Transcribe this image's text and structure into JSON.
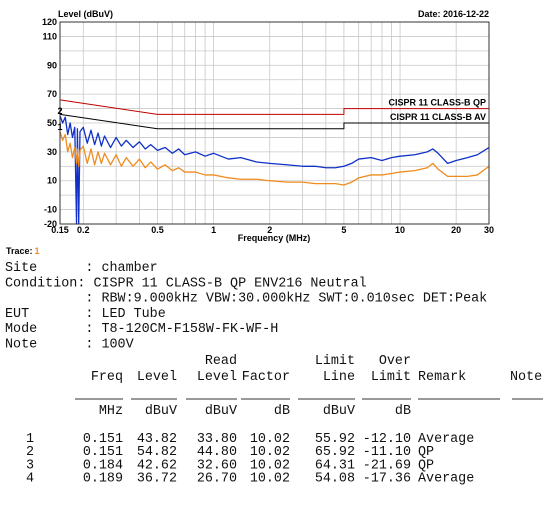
{
  "chart_data": {
    "type": "line",
    "ylabel": "Level (dBuV)",
    "xlabel": "Frequency (MHz)",
    "date": "Date: 2016-12-22",
    "xscale": "log",
    "xlim": [
      0.15,
      30
    ],
    "xticks": [
      0.15,
      0.2,
      0.5,
      1,
      2,
      5,
      10,
      20,
      30
    ],
    "xminor": [
      0.3,
      0.4,
      0.6,
      0.7,
      0.8,
      0.9,
      3,
      4,
      6,
      7,
      8,
      9
    ],
    "ylim": [
      -20,
      120
    ],
    "yticks": [
      -20,
      -10,
      10,
      30,
      50,
      70,
      90,
      110,
      120
    ],
    "yminor": [
      0,
      20,
      40,
      60,
      80,
      100
    ],
    "grid": true,
    "series": [
      {
        "name": "CISPR 11 CLASS-B QP",
        "color": "#c00000",
        "x": [
          0.15,
          0.5,
          5,
          5,
          30
        ],
        "values": [
          66,
          56,
          56,
          60,
          60
        ]
      },
      {
        "name": "CISPR 11 CLASS-B AV",
        "color": "#000000",
        "x": [
          0.15,
          0.5,
          5,
          5,
          30
        ],
        "values": [
          56,
          46,
          46,
          50,
          50
        ]
      },
      {
        "color": "#1030c8",
        "x": [
          0.15,
          0.155,
          0.16,
          0.165,
          0.17,
          0.175,
          0.18,
          0.184,
          0.186,
          0.189,
          0.192,
          0.2,
          0.21,
          0.22,
          0.23,
          0.24,
          0.25,
          0.26,
          0.28,
          0.3,
          0.32,
          0.34,
          0.37,
          0.4,
          0.43,
          0.46,
          0.5,
          0.55,
          0.6,
          0.65,
          0.7,
          0.8,
          0.9,
          1,
          1.2,
          1.4,
          1.7,
          2,
          2.5,
          3,
          3.5,
          4,
          4.5,
          5,
          5.5,
          6,
          7,
          8,
          9,
          10,
          12,
          14,
          15,
          16,
          18,
          20,
          23,
          26,
          30
        ],
        "values": [
          55,
          50,
          54,
          42,
          50,
          40,
          47,
          -20,
          46,
          -20,
          44,
          47,
          36,
          45,
          35,
          43,
          34,
          41,
          33,
          40,
          34,
          38,
          33,
          37,
          32,
          35,
          31,
          33,
          29,
          32,
          28,
          30,
          27,
          29,
          25,
          26,
          23,
          22,
          21,
          20,
          20,
          19,
          19,
          20,
          22,
          25,
          26,
          24,
          26,
          27,
          28,
          30,
          32,
          29,
          22,
          24,
          26,
          28,
          33
        ]
      },
      {
        "color": "#f08c1e",
        "x": [
          0.15,
          0.155,
          0.16,
          0.165,
          0.17,
          0.175,
          0.18,
          0.184,
          0.186,
          0.189,
          0.192,
          0.2,
          0.21,
          0.22,
          0.23,
          0.24,
          0.25,
          0.26,
          0.28,
          0.3,
          0.32,
          0.34,
          0.37,
          0.4,
          0.43,
          0.46,
          0.5,
          0.55,
          0.6,
          0.65,
          0.7,
          0.8,
          0.9,
          1,
          1.2,
          1.4,
          1.7,
          2,
          2.5,
          3,
          3.5,
          4,
          4.5,
          5,
          5.5,
          6,
          7,
          8,
          9,
          10,
          12,
          14,
          15,
          16,
          18,
          20,
          23,
          26,
          30
        ],
        "values": [
          44,
          38,
          42,
          30,
          36,
          26,
          33,
          22,
          32,
          20,
          31,
          34,
          22,
          32,
          21,
          30,
          22,
          29,
          21,
          28,
          20,
          26,
          20,
          25,
          19,
          23,
          18,
          21,
          17,
          19,
          16,
          16,
          14,
          14,
          12,
          11,
          11,
          10,
          9,
          9,
          8,
          8,
          8,
          7,
          9,
          12,
          14,
          14,
          15,
          16,
          17,
          19,
          22,
          18,
          13,
          13,
          13,
          14,
          20
        ]
      }
    ],
    "markers": [
      {
        "label": "2",
        "x": 0.151,
        "y": 54.82
      },
      {
        "label": "1",
        "x": 0.151,
        "y": 43.82
      }
    ]
  },
  "report": {
    "trace_label": "Trace:",
    "trace": "1",
    "info": [
      {
        "label": "Site",
        "value": ": chamber"
      },
      {
        "label": "Condition:",
        "value": "CISPR 11 CLASS-B QP ENV216 Neutral"
      },
      {
        "value": ": RBW:9.000kHz VBW:30.000kHz SWT:0.010sec DET:Peak"
      },
      {
        "label": "EUT",
        "value": ": LED Tube"
      },
      {
        "label": "Mode",
        "value": ": T8-120CM-F158W-FK-WF-H"
      },
      {
        "label": "Note",
        "value": ": 100V"
      }
    ]
  },
  "table": {
    "columns": [
      {
        "name": "Freq",
        "unit": "MHz"
      },
      {
        "name": "Level",
        "unit": "dBuV"
      },
      {
        "top": "Read",
        "name": "Level",
        "unit": "dBuV"
      },
      {
        "name": "Factor",
        "unit": "dB"
      },
      {
        "top": "Limit",
        "name": "Line",
        "unit": "dBuV"
      },
      {
        "top": "Over",
        "name": "Limit",
        "unit": "dB"
      },
      {
        "name": "Remark"
      },
      {
        "name": "Note"
      }
    ],
    "rows": [
      [
        "1",
        "0.151",
        "43.82",
        "33.80",
        "10.02",
        "55.92",
        "-12.10",
        "Average"
      ],
      [
        "2",
        "0.151",
        "54.82",
        "44.80",
        "10.02",
        "65.92",
        "-11.10",
        "QP"
      ],
      [
        "3",
        "0.184",
        "42.62",
        "32.60",
        "10.02",
        "64.31",
        "-21.69",
        "QP"
      ],
      [
        "4",
        "0.189",
        "36.72",
        "26.70",
        "10.02",
        "54.08",
        "-17.36",
        "Average"
      ]
    ]
  }
}
